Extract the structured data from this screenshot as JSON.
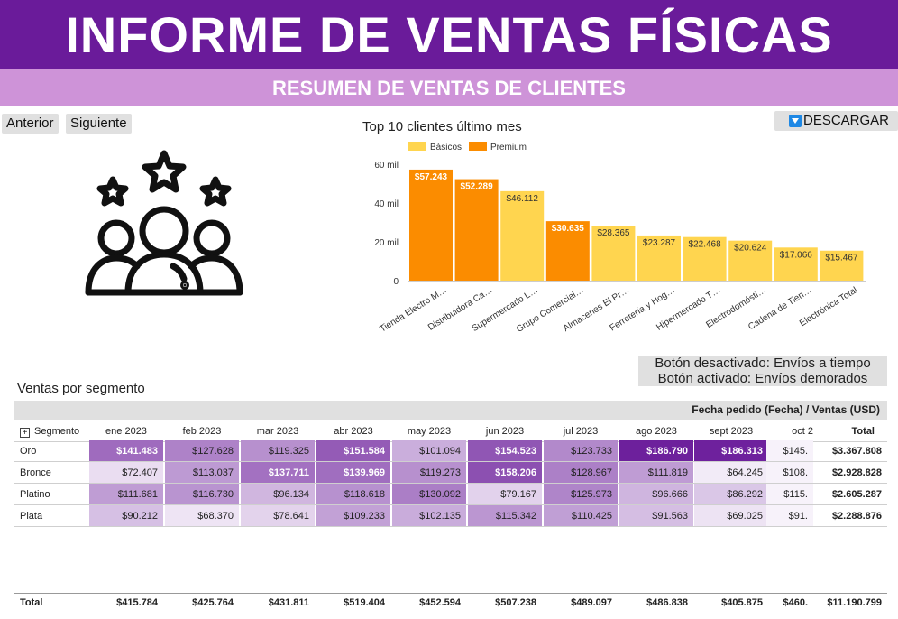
{
  "header": {
    "title": "INFORME DE VENTAS FÍSICAS",
    "subtitle": "RESUMEN DE VENTAS DE CLIENTES"
  },
  "nav": {
    "prev": "Anterior",
    "next": "Siguiente",
    "download": "DESCARGAR",
    "download_icon": "download-arrow-icon"
  },
  "illustration": {
    "icon": "customers-rating-icon"
  },
  "info_box": {
    "line1": "Botón desactivado: Envíos a tiempo",
    "line2": "Botón activado: Envíos demorados"
  },
  "colors": {
    "header": "#6a1b9a",
    "subheader": "#ce93d8",
    "basicos": "#ffd54f",
    "premium": "#fb8c00"
  },
  "chart_data": {
    "type": "bar",
    "title": "Top 10 clientes último mes",
    "categories": [
      "Tienda Electro M…",
      "Distribuidora Ca…",
      "Supermercado L…",
      "Grupo Comercial…",
      "Almacenes El Pr…",
      "Ferretería y Hog…",
      "Hipermercado T…",
      "Electrodomésti…",
      "Cadena de Tien…",
      "Electrónica Total"
    ],
    "values": [
      57243,
      52289,
      46112,
      30635,
      28365,
      23287,
      22468,
      20624,
      17066,
      15467
    ],
    "value_labels": [
      "$57.243",
      "$52.289",
      "$46.112",
      "$30.635",
      "$28.365",
      "$23.287",
      "$22.468",
      "$20.624",
      "$17.066",
      "$15.467"
    ],
    "segment": [
      "Premium",
      "Premium",
      "Básicos",
      "Premium",
      "Básicos",
      "Básicos",
      "Básicos",
      "Básicos",
      "Básicos",
      "Básicos"
    ],
    "legend": [
      "Básicos",
      "Premium"
    ],
    "yticks": [
      "0",
      "20 mil",
      "40 mil",
      "60 mil"
    ],
    "ylim": [
      0,
      60000
    ],
    "grid": false,
    "legend_position": "top"
  },
  "table": {
    "title": "Ventas por segmento",
    "header_label": "Fecha pedido (Fecha) / Ventas (USD)",
    "segment_col": "Segmento",
    "expand_icon": "plus-icon",
    "months": [
      "ene 2023",
      "feb 2023",
      "mar 2023",
      "abr 2023",
      "may 2023",
      "jun 2023",
      "jul 2023",
      "ago 2023",
      "sept 2023",
      "oct 2"
    ],
    "total_col": "Total",
    "rows": [
      {
        "label": "Oro",
        "values": [
          "$141.483",
          "$127.628",
          "$119.325",
          "$151.584",
          "$101.094",
          "$154.523",
          "$123.733",
          "$186.790",
          "$186.313",
          "$145."
        ],
        "total": "$3.367.808"
      },
      {
        "label": "Bronce",
        "values": [
          "$72.407",
          "$113.037",
          "$137.711",
          "$139.969",
          "$119.273",
          "$158.206",
          "$128.967",
          "$111.819",
          "$64.245",
          "$108."
        ],
        "total": "$2.928.828"
      },
      {
        "label": "Platino",
        "values": [
          "$111.681",
          "$116.730",
          "$96.134",
          "$118.618",
          "$130.092",
          "$79.167",
          "$125.973",
          "$96.666",
          "$86.292",
          "$115."
        ],
        "total": "$2.605.287"
      },
      {
        "label": "Plata",
        "values": [
          "$90.212",
          "$68.370",
          "$78.641",
          "$109.233",
          "$102.135",
          "$115.342",
          "$110.425",
          "$91.563",
          "$69.025",
          "$91."
        ],
        "total": "$2.288.876"
      }
    ],
    "total_row": {
      "label": "Total",
      "values": [
        "$415.784",
        "$425.764",
        "$431.811",
        "$519.404",
        "$452.594",
        "$507.238",
        "$489.097",
        "$486.838",
        "$405.875",
        "$460."
      ],
      "total": "$11.190.799"
    }
  }
}
